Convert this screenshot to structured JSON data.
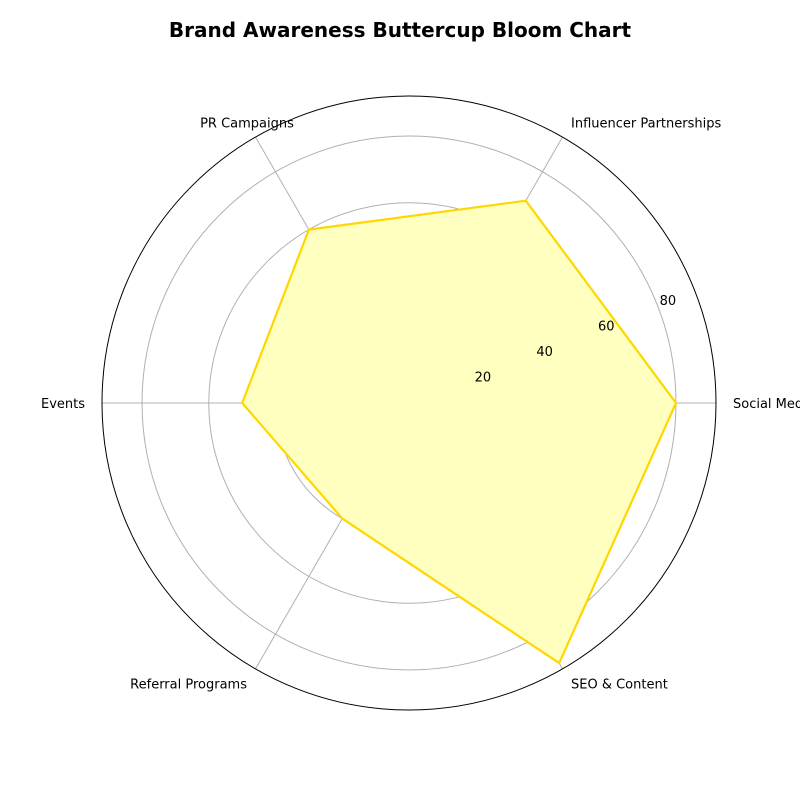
{
  "chart_data": {
    "type": "radar",
    "title": "Brand Awareness Buttercup Bloom Chart",
    "categories": [
      "Social Media",
      "Influencer Partnerships",
      "PR Campaigns",
      "Events",
      "Referral Programs",
      "SEO & Content"
    ],
    "series": [
      {
        "values": [
          80,
          70,
          60,
          50,
          40,
          90
        ]
      }
    ],
    "rmax": 92,
    "rticks": [
      20,
      40,
      60,
      80
    ],
    "grid": true,
    "colors": {
      "line": "#FFD700",
      "fill": "#FFFFBF",
      "grid": "#b0b0b0",
      "frame": "#000000"
    }
  }
}
